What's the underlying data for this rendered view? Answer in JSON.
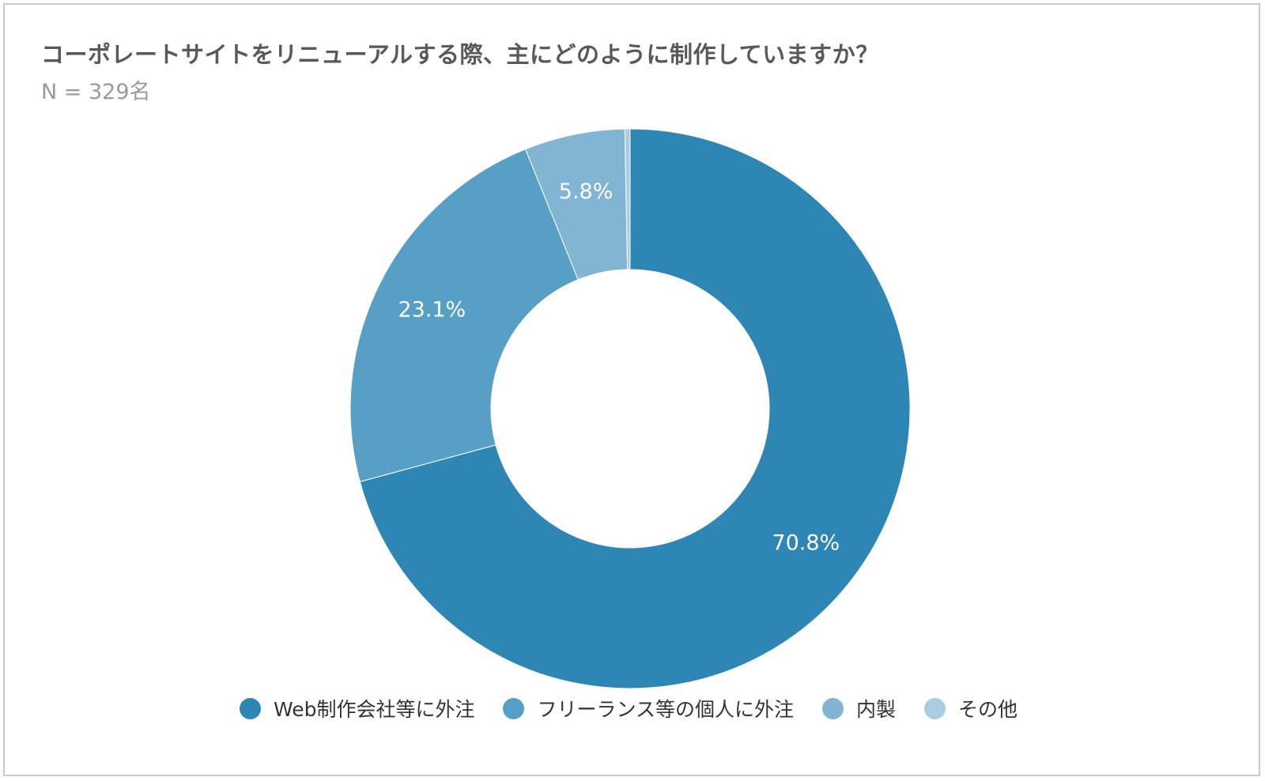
{
  "title": "コーポレートサイトをリニューアルする際、主にどのように制作していますか？",
  "subtitle": "N = 329名",
  "chart_data": {
    "type": "pie",
    "donut": true,
    "title": "コーポレートサイトをリニューアルする際、主にどのように制作していますか？",
    "subtitle": "N = 329名",
    "legend_position": "bottom",
    "slices": [
      {
        "name": "Web制作会社等に外注",
        "value": 70.8,
        "label": "70.8%",
        "color": "#2e86b4"
      },
      {
        "name": "フリーランス等の個人に外注",
        "value": 23.1,
        "label": "23.1%",
        "color": "#589fc5"
      },
      {
        "name": "内製",
        "value": 5.8,
        "label": "5.8%",
        "color": "#82b5d4"
      },
      {
        "name": "その他",
        "value": 0.3,
        "label": "",
        "color": "#a9cde3"
      }
    ]
  }
}
